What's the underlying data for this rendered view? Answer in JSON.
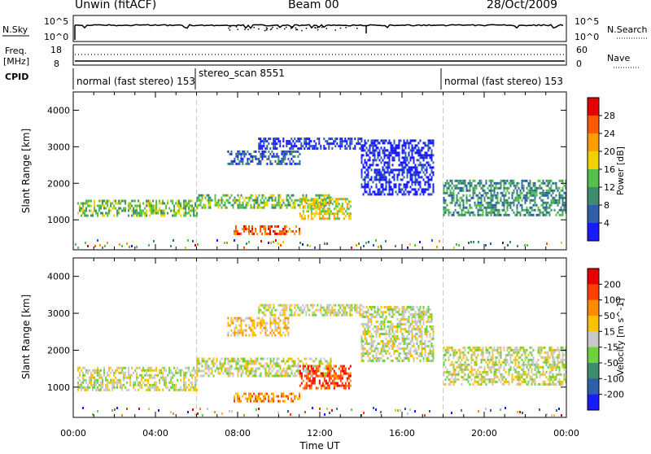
{
  "header": {
    "station": "Unwin (fitACF)",
    "beam": "Beam 00",
    "date": "28/Oct/2009"
  },
  "panels": {
    "nsky": {
      "label": "N.Sky",
      "ticks": [
        "10^5",
        "10^0"
      ],
      "right_label": "N.Search",
      "right_ticks": [
        "10^5",
        "10^0"
      ]
    },
    "freq": {
      "label_line1": "Freq.",
      "label_line2": "[MHz]",
      "ticks": [
        "18",
        "8"
      ],
      "right_label": "Nave",
      "right_ticks": [
        "60",
        "0"
      ]
    },
    "cpid": {
      "label": "CPID",
      "segments": [
        {
          "text": "normal (fast stereo) 153"
        },
        {
          "text": "stereo_scan 8551"
        },
        {
          "text": "normal (fast stereo) 153"
        }
      ]
    }
  },
  "chart_data": [
    {
      "type": "heatmap",
      "title": "",
      "xlabel": "Time UT",
      "ylabel": "Slant Range [km]",
      "xlim": [
        0,
        24
      ],
      "ylim": [
        180,
        4500
      ],
      "x_ticks": [
        "00:00",
        "04:00",
        "08:00",
        "12:00",
        "16:00",
        "20:00",
        "00:00"
      ],
      "y_ticks": [
        1000,
        2000,
        3000,
        4000
      ],
      "colorbar_label": "Power [dB]",
      "colorbar_ticks": [
        "4",
        "8",
        "12",
        "16",
        "20",
        "24",
        "28"
      ],
      "colorbar_colors": [
        "#1a1aff",
        "#2f5fa8",
        "#3f8c6c",
        "#52c24a",
        "#f0d200",
        "#ff9d00",
        "#ff5a00",
        "#e60000"
      ],
      "regions": [
        {
          "t0": 0.2,
          "t1": 6,
          "r0": 1100,
          "r1": 1550,
          "level": 3
        },
        {
          "t0": 6,
          "t1": 12.5,
          "r0": 1300,
          "r1": 1700,
          "level": 3
        },
        {
          "t0": 7.5,
          "t1": 11,
          "r0": 2500,
          "r1": 2900,
          "level": 1
        },
        {
          "t0": 9,
          "t1": 14,
          "r0": 2950,
          "r1": 3250,
          "level": 0
        },
        {
          "t0": 7.8,
          "t1": 11,
          "r0": 600,
          "r1": 850,
          "level": 6
        },
        {
          "t0": 11,
          "t1": 13.5,
          "r0": 1000,
          "r1": 1600,
          "level": 4
        },
        {
          "t0": 14,
          "t1": 17.5,
          "r0": 1700,
          "r1": 3200,
          "level": 0
        },
        {
          "t0": 18,
          "t1": 24,
          "r0": 1100,
          "r1": 2100,
          "level": 2
        }
      ]
    },
    {
      "type": "heatmap",
      "title": "",
      "xlabel": "Time UT",
      "ylabel": "Slant Range [km]",
      "xlim": [
        0,
        24
      ],
      "ylim": [
        180,
        4500
      ],
      "x_ticks": [
        "00:00",
        "04:00",
        "08:00",
        "12:00",
        "16:00",
        "20:00",
        "00:00"
      ],
      "y_ticks": [
        1000,
        2000,
        3000,
        4000
      ],
      "colorbar_label": "Velocity [m s^-1]",
      "colorbar_ticks": [
        "200",
        "100",
        "50",
        "15",
        "-15",
        "-50",
        "-100",
        "-200"
      ],
      "colorbar_colors": [
        "#1a1aff",
        "#2f5fa8",
        "#3f8c6c",
        "#6dd23c",
        "#c8c8c8",
        "#ffc000",
        "#ff8c00",
        "#ff4000",
        "#e60000"
      ],
      "regions": [
        {
          "t0": 0.2,
          "t1": 6,
          "r0": 950,
          "r1": 1550,
          "level": 4
        },
        {
          "t0": 6,
          "t1": 12.5,
          "r0": 1300,
          "r1": 1800,
          "level": 4
        },
        {
          "t0": 7.5,
          "t1": 10.5,
          "r0": 2400,
          "r1": 2900,
          "level": 5
        },
        {
          "t0": 9,
          "t1": 14,
          "r0": 2950,
          "r1": 3250,
          "level": 4
        },
        {
          "t0": 7.8,
          "t1": 11,
          "r0": 600,
          "r1": 850,
          "level": 6
        },
        {
          "t0": 11,
          "t1": 13.5,
          "r0": 1000,
          "r1": 1600,
          "level": 7
        },
        {
          "t0": 14,
          "t1": 17.5,
          "r0": 1700,
          "r1": 3200,
          "level": 4
        },
        {
          "t0": 18,
          "t1": 24,
          "r0": 1100,
          "r1": 2100,
          "level": 4
        }
      ]
    }
  ]
}
